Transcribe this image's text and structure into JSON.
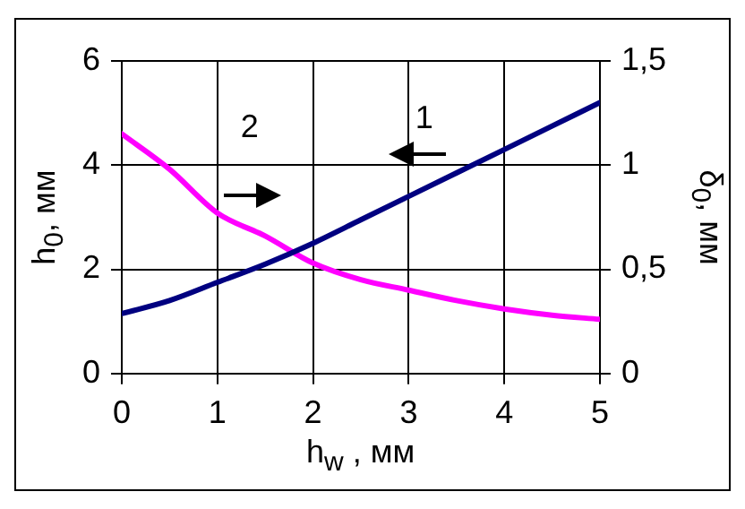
{
  "chart_data": {
    "type": "line",
    "xlabel": "h$_{w}$ , мм",
    "ylabel": "h$_{0}$, мм",
    "y2label": "δ$_{0}$, мм",
    "x": [
      0,
      0.5,
      1,
      1.5,
      2,
      2.5,
      3,
      3.5,
      4,
      4.5,
      5
    ],
    "xlim": [
      0,
      5
    ],
    "xticks": [
      0,
      1,
      2,
      3,
      4,
      5
    ],
    "ylim": [
      0,
      6
    ],
    "yticks": [
      0,
      2,
      4,
      6
    ],
    "y2lim": [
      0,
      1.5
    ],
    "y2ticks": [
      0,
      {
        "value": 0.5,
        "label": "0,5"
      },
      1,
      {
        "value": 1.5,
        "label": "1,5"
      }
    ],
    "series": [
      {
        "color": "#000080",
        "axis": "y",
        "values": [
          1.15,
          1.4,
          1.75,
          2.1,
          2.5,
          2.95,
          3.4,
          3.85,
          4.3,
          4.75,
          5.2
        ]
      },
      {
        "color": "#ff00ff",
        "axis": "y2",
        "values": [
          1.15,
          0.98,
          0.77,
          0.66,
          0.53,
          0.45,
          0.4,
          0.35,
          0.31,
          0.28,
          0.26
        ]
      }
    ],
    "annotations": [
      "1",
      "2"
    ],
    "grid": true,
    "legend": false,
    "marker": "none",
    "line_style": "solid"
  }
}
